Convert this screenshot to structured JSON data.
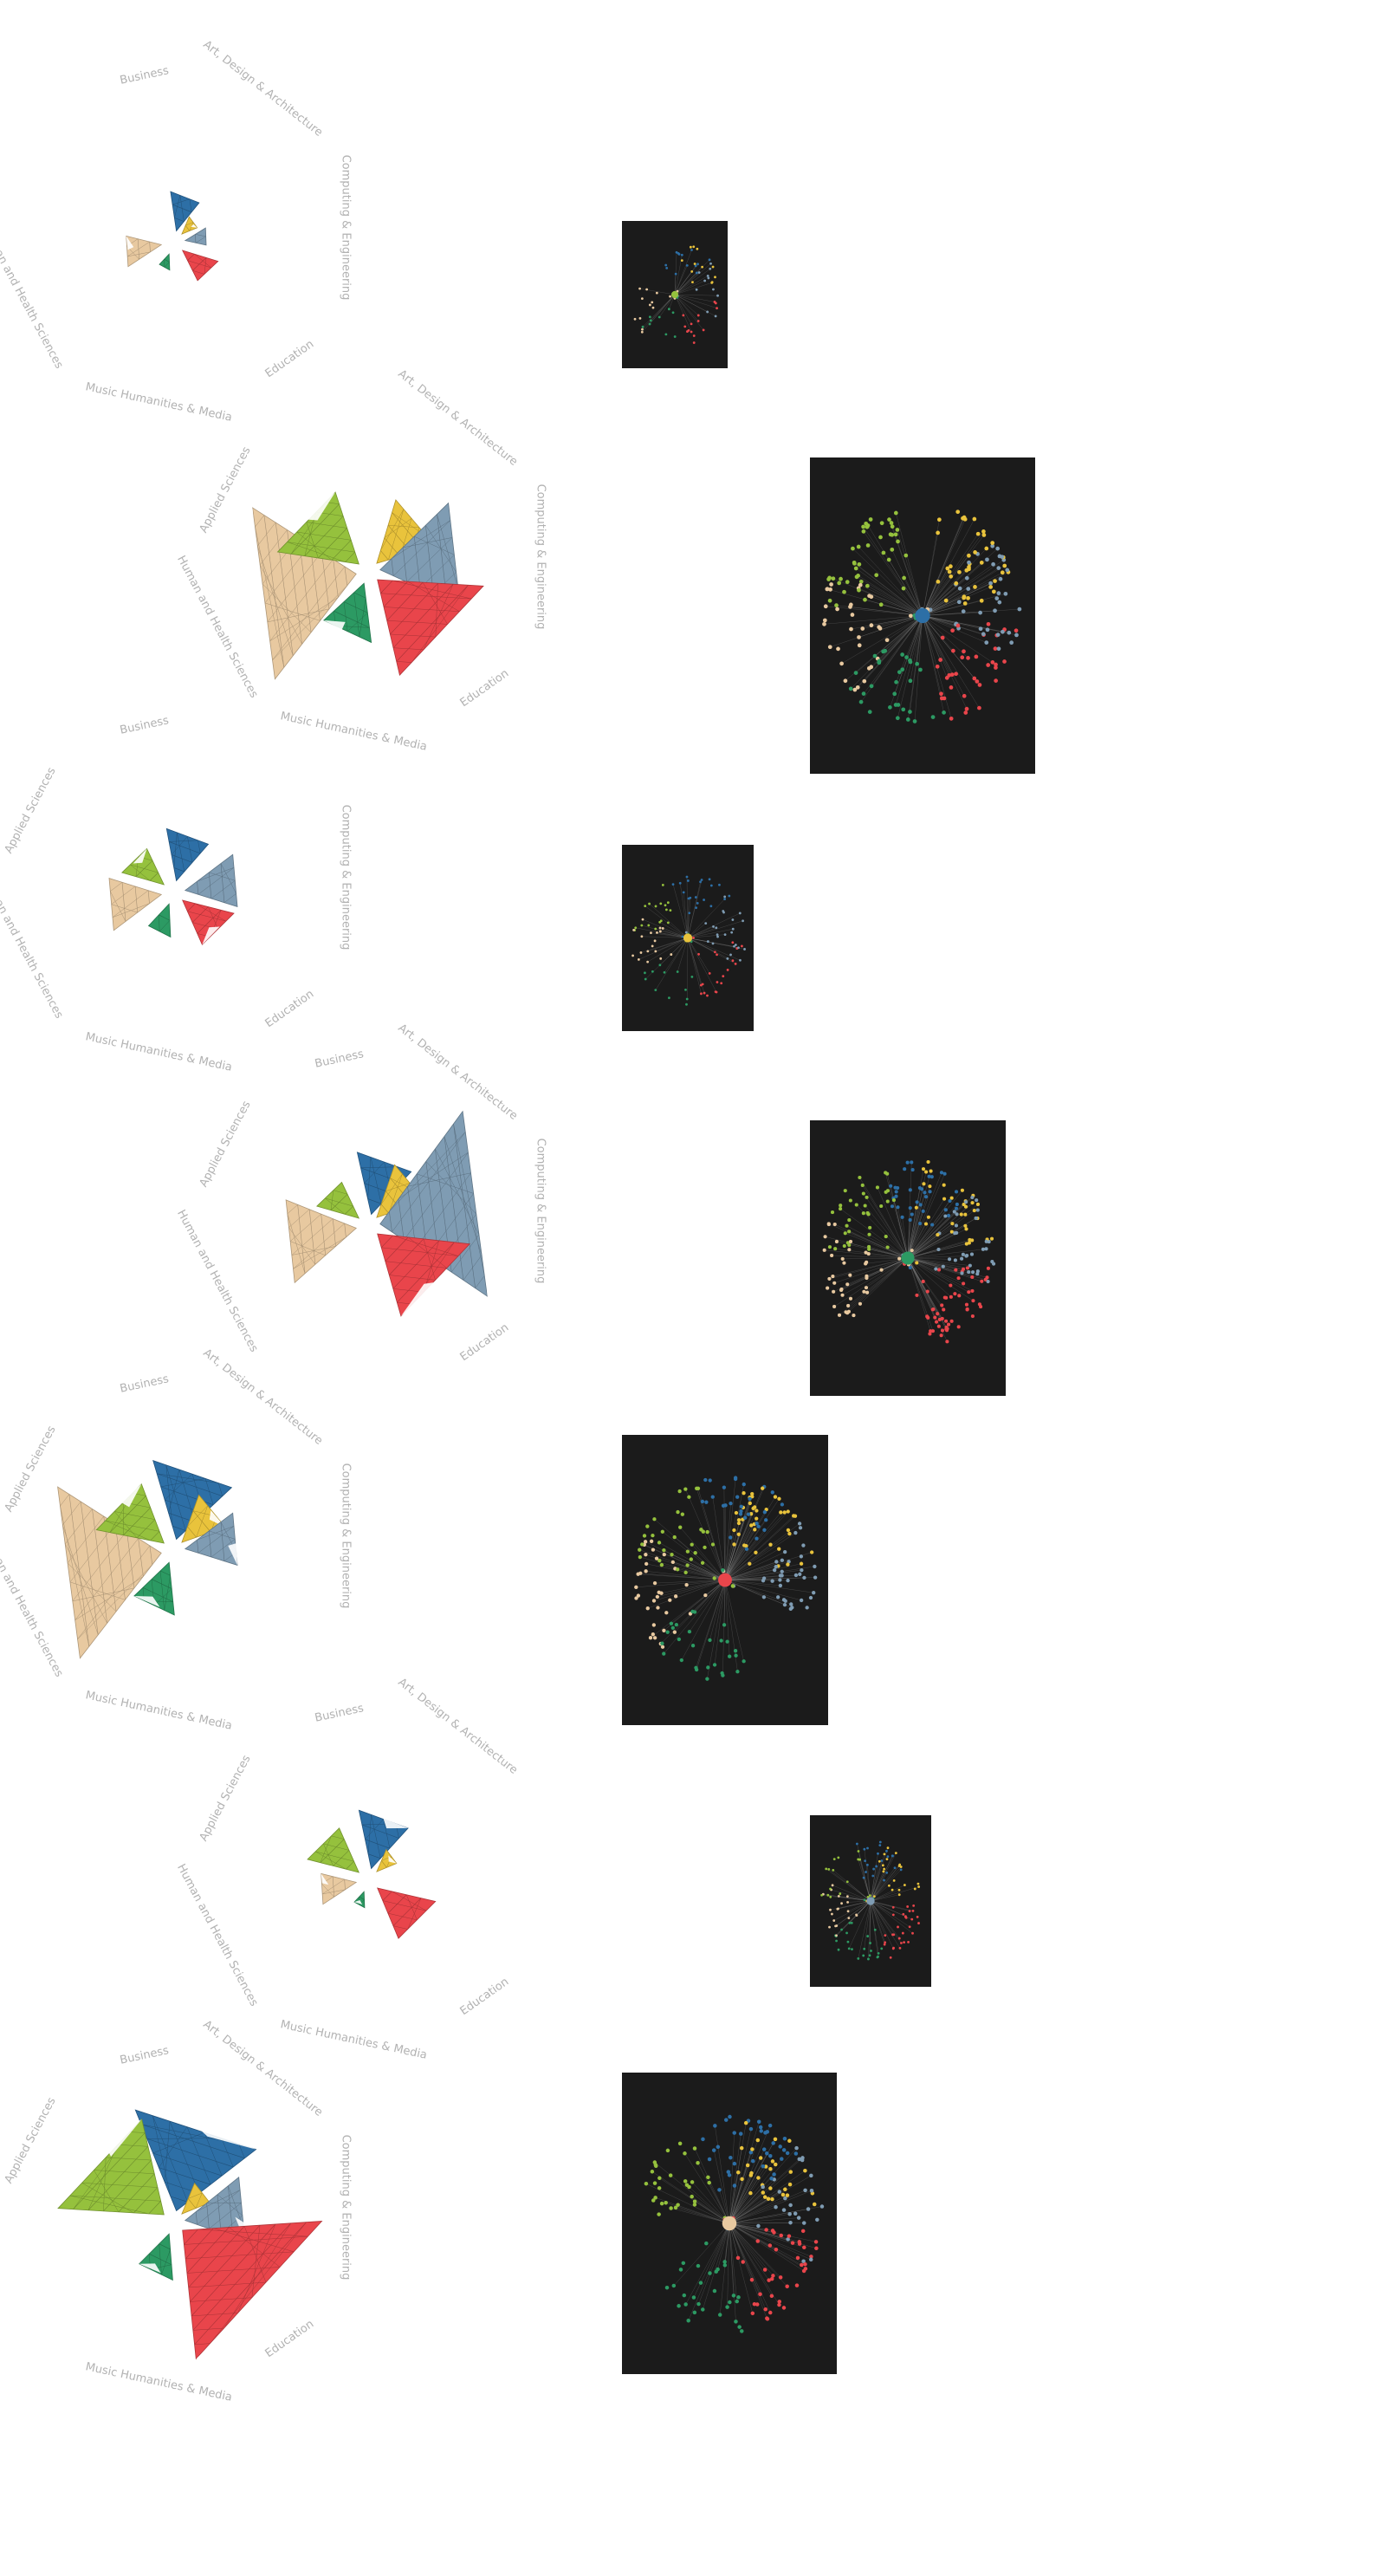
{
  "colors": {
    "background": "#ffffff",
    "label_text": "#b2b2b2",
    "panel_background": "#1b1b1b",
    "edge": "#9a9a9a",
    "Business": "#2d6fa6",
    "Art, Design & Architecture": "#e9c33c",
    "Computing & Engineering": "#7f9cb3",
    "Education": "#e9454b",
    "Music Humanities & Media": "#2c9a63",
    "Human and Health Sciences": "#e8c9a0",
    "Applied Sciences": "#95c13d"
  },
  "label_text": {
    "business": "Business",
    "art": "Art, Design & Architecture",
    "computing": "Computing & Engineering",
    "education": "Education",
    "music": "Music Humanities & Media",
    "human": "Human and Health Sciences",
    "applied": "Applied Sciences"
  },
  "rows": [
    {
      "labels": [
        "business",
        "art",
        "computing",
        "education",
        "music",
        "human"
      ],
      "sizes": {
        "business": 0.3,
        "art": 0.14,
        "computing": 0.18,
        "education": 0.28,
        "music": 0.12,
        "human": 0.3,
        "applied": 0
      },
      "net_hub": "Applied Sciences",
      "net_nodes": 70
    },
    {
      "labels": [
        "applied",
        "art",
        "computing",
        "education",
        "music",
        "human"
      ],
      "sizes": {
        "business": 0,
        "art": 0.5,
        "computing": 0.72,
        "education": 0.8,
        "music": 0.45,
        "human": 1.0,
        "applied": 0.62
      },
      "net_hub": "Business",
      "net_nodes": 230
    },
    {
      "labels": [
        "business",
        "applied",
        "computing",
        "education",
        "music",
        "human"
      ],
      "sizes": {
        "business": 0.4,
        "art": 0,
        "computing": 0.45,
        "education": 0.4,
        "music": 0.25,
        "human": 0.45,
        "applied": 0.33
      },
      "net_hub": "Art, Design & Architecture",
      "net_nodes": 110
    },
    {
      "labels": [
        "business",
        "art",
        "applied",
        "computing",
        "education",
        "human"
      ],
      "sizes": {
        "business": 0.48,
        "art": 0.42,
        "computing": 1.05,
        "education": 0.7,
        "music": 0,
        "human": 0.62,
        "applied": 0.33
      },
      "net_hub": "Music Humanities & Media",
      "net_nodes": 240
    },
    {
      "labels": [
        "business",
        "art",
        "applied",
        "computing",
        "music",
        "human"
      ],
      "sizes": {
        "business": 0.62,
        "art": 0.38,
        "computing": 0.45,
        "education": 0,
        "music": 0.4,
        "human": 1.0,
        "applied": 0.52
      },
      "net_hub": "Education",
      "net_nodes": 210
    },
    {
      "labels": [
        "business",
        "art",
        "applied",
        "education",
        "music",
        "human"
      ],
      "sizes": {
        "business": 0.45,
        "art": 0.18,
        "computing": 0,
        "education": 0.45,
        "music": 0.12,
        "human": 0.3,
        "applied": 0.4
      },
      "net_hub": "Computing & Engineering",
      "net_nodes": 130
    },
    {
      "labels": [
        "business",
        "art",
        "applied",
        "computing",
        "education",
        "music"
      ],
      "sizes": {
        "business": 0.82,
        "art": 0.25,
        "computing": 0.52,
        "education": 1.05,
        "music": 0.35,
        "human": 0,
        "applied": 0.8
      },
      "net_hub": "Human and Health Sciences",
      "net_nodes": 200
    }
  ]
}
